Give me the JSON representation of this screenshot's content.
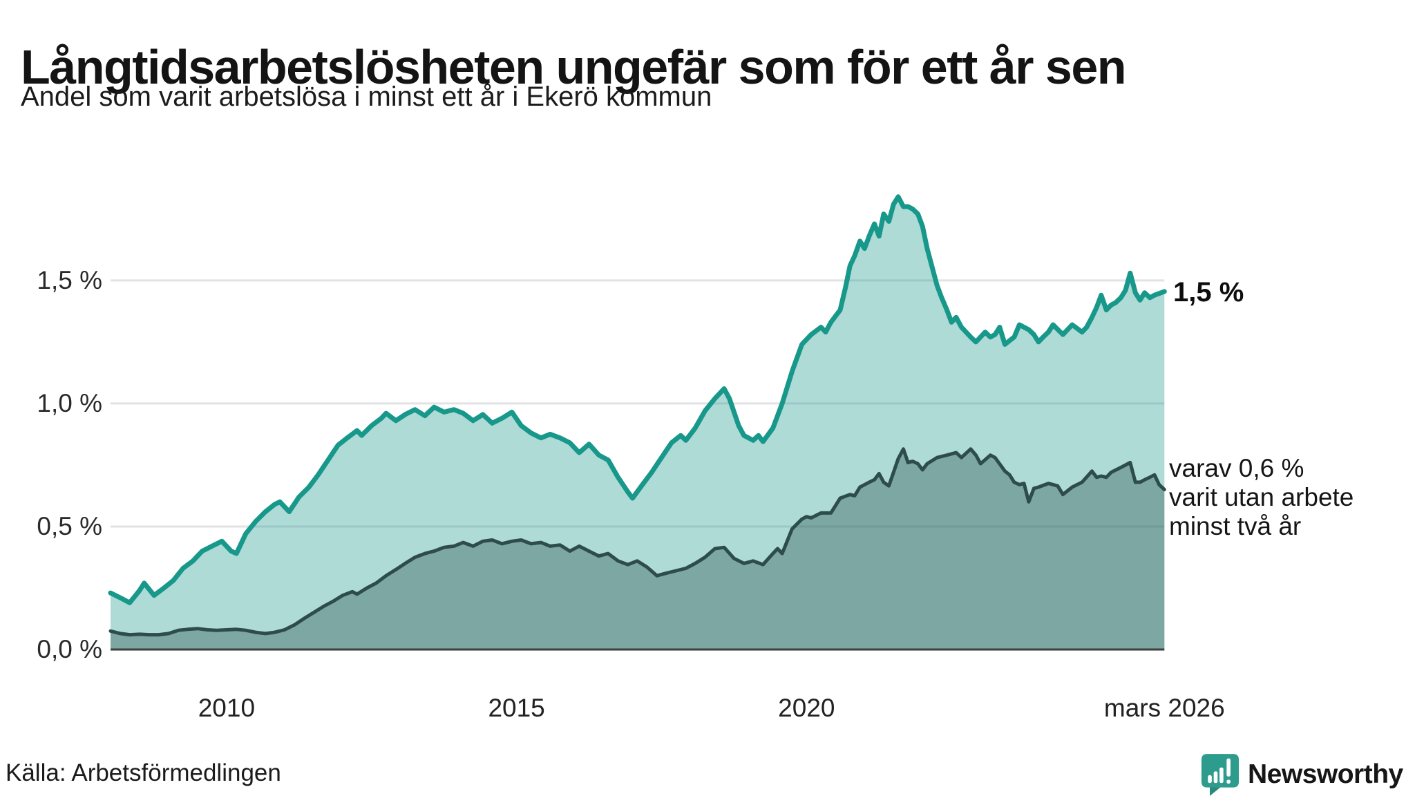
{
  "header": {
    "title": "Långtidsarbetslösheten ungefär som för ett år sen",
    "subtitle": "Andel som varit arbetslösa i minst ett år i Ekerö kommun"
  },
  "annotations": {
    "latest_total": "1,5 %",
    "secondary": [
      "varav 0,6 %",
      "varit utan arbete",
      "minst två år"
    ]
  },
  "source": {
    "label": "Källa: Arbetsförmedlingen"
  },
  "branding": {
    "name": "Newsworthy",
    "color": "#2d9b8d",
    "icon": "bar-chart-speech-bubble-icon"
  },
  "chart_data": {
    "type": "area",
    "title": "Långtidsarbetslösheten ungefär som för ett år sen",
    "subtitle": "Andel som varit arbetslösa i minst ett år i Ekerö kommun",
    "unit": "%",
    "x_range": [
      2008,
      2026.25
    ],
    "y_range": [
      0,
      2.05
    ],
    "grid": true,
    "legend_position": "right-annotations",
    "colors": {
      "grid": "#e2e2e7",
      "axis": "#3e3e3e"
    },
    "y_ticks": [
      {
        "label": "0,0 %",
        "value": 0
      },
      {
        "label": "0,5 %",
        "value": 0.5
      },
      {
        "label": "1,0 %",
        "value": 1.0
      },
      {
        "label": "1,5 %",
        "value": 1.5
      }
    ],
    "x_ticks": [
      {
        "label": "2010",
        "year": 2010
      },
      {
        "label": "2015",
        "year": 2015
      },
      {
        "label": "2020",
        "year": 2020
      },
      {
        "label": "mars 2026",
        "year": 2026.17
      }
    ],
    "series": [
      {
        "name": "arbetslösa minst ett år",
        "color": "#17988a",
        "fill": "rgba(23,152,138,0.35)",
        "stroke_width": 7,
        "latest_label": "1,5 %",
        "points": [
          [
            2008.0,
            0.23
          ],
          [
            2008.17,
            0.21
          ],
          [
            2008.33,
            0.19
          ],
          [
            2008.5,
            0.24
          ],
          [
            2008.58,
            0.27
          ],
          [
            2008.75,
            0.22
          ],
          [
            2008.92,
            0.25
          ],
          [
            2009.08,
            0.28
          ],
          [
            2009.25,
            0.33
          ],
          [
            2009.42,
            0.36
          ],
          [
            2009.58,
            0.4
          ],
          [
            2009.75,
            0.42
          ],
          [
            2009.92,
            0.44
          ],
          [
            2010.08,
            0.4
          ],
          [
            2010.17,
            0.39
          ],
          [
            2010.33,
            0.47
          ],
          [
            2010.5,
            0.52
          ],
          [
            2010.67,
            0.56
          ],
          [
            2010.83,
            0.59
          ],
          [
            2010.92,
            0.6
          ],
          [
            2011.08,
            0.56
          ],
          [
            2011.25,
            0.62
          ],
          [
            2011.42,
            0.66
          ],
          [
            2011.58,
            0.71
          ],
          [
            2011.75,
            0.77
          ],
          [
            2011.92,
            0.83
          ],
          [
            2012.08,
            0.86
          ],
          [
            2012.25,
            0.89
          ],
          [
            2012.33,
            0.87
          ],
          [
            2012.5,
            0.91
          ],
          [
            2012.67,
            0.94
          ],
          [
            2012.75,
            0.96
          ],
          [
            2012.92,
            0.93
          ],
          [
            2013.08,
            0.955
          ],
          [
            2013.25,
            0.975
          ],
          [
            2013.42,
            0.95
          ],
          [
            2013.58,
            0.985
          ],
          [
            2013.75,
            0.965
          ],
          [
            2013.92,
            0.975
          ],
          [
            2014.08,
            0.96
          ],
          [
            2014.25,
            0.93
          ],
          [
            2014.42,
            0.955
          ],
          [
            2014.58,
            0.92
          ],
          [
            2014.75,
            0.94
          ],
          [
            2014.92,
            0.965
          ],
          [
            2015.08,
            0.91
          ],
          [
            2015.25,
            0.88
          ],
          [
            2015.42,
            0.86
          ],
          [
            2015.58,
            0.875
          ],
          [
            2015.75,
            0.86
          ],
          [
            2015.92,
            0.84
          ],
          [
            2016.08,
            0.8
          ],
          [
            2016.25,
            0.835
          ],
          [
            2016.42,
            0.79
          ],
          [
            2016.58,
            0.77
          ],
          [
            2016.75,
            0.7
          ],
          [
            2016.92,
            0.64
          ],
          [
            2017.0,
            0.615
          ],
          [
            2017.17,
            0.67
          ],
          [
            2017.33,
            0.72
          ],
          [
            2017.5,
            0.78
          ],
          [
            2017.67,
            0.84
          ],
          [
            2017.83,
            0.87
          ],
          [
            2017.92,
            0.85
          ],
          [
            2018.08,
            0.9
          ],
          [
            2018.25,
            0.97
          ],
          [
            2018.42,
            1.02
          ],
          [
            2018.58,
            1.06
          ],
          [
            2018.67,
            1.02
          ],
          [
            2018.83,
            0.91
          ],
          [
            2018.92,
            0.87
          ],
          [
            2019.08,
            0.85
          ],
          [
            2019.17,
            0.87
          ],
          [
            2019.25,
            0.845
          ],
          [
            2019.42,
            0.9
          ],
          [
            2019.58,
            1.0
          ],
          [
            2019.75,
            1.13
          ],
          [
            2019.92,
            1.24
          ],
          [
            2020.08,
            1.28
          ],
          [
            2020.25,
            1.31
          ],
          [
            2020.33,
            1.29
          ],
          [
            2020.42,
            1.33
          ],
          [
            2020.58,
            1.38
          ],
          [
            2020.67,
            1.47
          ],
          [
            2020.75,
            1.56
          ],
          [
            2020.83,
            1.6
          ],
          [
            2020.92,
            1.66
          ],
          [
            2021.0,
            1.63
          ],
          [
            2021.08,
            1.68
          ],
          [
            2021.17,
            1.73
          ],
          [
            2021.25,
            1.68
          ],
          [
            2021.33,
            1.77
          ],
          [
            2021.42,
            1.74
          ],
          [
            2021.5,
            1.81
          ],
          [
            2021.58,
            1.84
          ],
          [
            2021.67,
            1.8
          ],
          [
            2021.75,
            1.8
          ],
          [
            2021.83,
            1.79
          ],
          [
            2021.92,
            1.77
          ],
          [
            2022.0,
            1.72
          ],
          [
            2022.08,
            1.63
          ],
          [
            2022.17,
            1.55
          ],
          [
            2022.25,
            1.48
          ],
          [
            2022.33,
            1.43
          ],
          [
            2022.42,
            1.38
          ],
          [
            2022.5,
            1.33
          ],
          [
            2022.58,
            1.35
          ],
          [
            2022.67,
            1.31
          ],
          [
            2022.75,
            1.29
          ],
          [
            2022.83,
            1.27
          ],
          [
            2022.92,
            1.25
          ],
          [
            2023.08,
            1.29
          ],
          [
            2023.17,
            1.27
          ],
          [
            2023.25,
            1.28
          ],
          [
            2023.33,
            1.31
          ],
          [
            2023.42,
            1.24
          ],
          [
            2023.58,
            1.27
          ],
          [
            2023.67,
            1.32
          ],
          [
            2023.83,
            1.3
          ],
          [
            2023.92,
            1.28
          ],
          [
            2024.0,
            1.25
          ],
          [
            2024.08,
            1.27
          ],
          [
            2024.17,
            1.29
          ],
          [
            2024.25,
            1.32
          ],
          [
            2024.42,
            1.28
          ],
          [
            2024.5,
            1.3
          ],
          [
            2024.58,
            1.32
          ],
          [
            2024.75,
            1.29
          ],
          [
            2024.83,
            1.31
          ],
          [
            2024.92,
            1.35
          ],
          [
            2025.0,
            1.39
          ],
          [
            2025.08,
            1.44
          ],
          [
            2025.17,
            1.38
          ],
          [
            2025.25,
            1.4
          ],
          [
            2025.33,
            1.41
          ],
          [
            2025.42,
            1.43
          ],
          [
            2025.5,
            1.46
          ],
          [
            2025.58,
            1.53
          ],
          [
            2025.67,
            1.45
          ],
          [
            2025.75,
            1.42
          ],
          [
            2025.83,
            1.45
          ],
          [
            2025.92,
            1.43
          ],
          [
            2026.0,
            1.44
          ],
          [
            2026.17,
            1.455
          ]
        ]
      },
      {
        "name": "varav utan arbete minst två år",
        "color": "#2e4c4b",
        "fill": "rgba(38,74,72,0.36)",
        "stroke_width": 5,
        "latest_label": "0,6 %",
        "points": [
          [
            2008.0,
            0.075
          ],
          [
            2008.17,
            0.065
          ],
          [
            2008.33,
            0.06
          ],
          [
            2008.5,
            0.062
          ],
          [
            2008.67,
            0.06
          ],
          [
            2008.83,
            0.06
          ],
          [
            2009.0,
            0.065
          ],
          [
            2009.17,
            0.078
          ],
          [
            2009.33,
            0.082
          ],
          [
            2009.5,
            0.085
          ],
          [
            2009.67,
            0.08
          ],
          [
            2009.83,
            0.078
          ],
          [
            2010.0,
            0.08
          ],
          [
            2010.17,
            0.082
          ],
          [
            2010.33,
            0.078
          ],
          [
            2010.5,
            0.07
          ],
          [
            2010.67,
            0.065
          ],
          [
            2010.83,
            0.07
          ],
          [
            2011.0,
            0.08
          ],
          [
            2011.17,
            0.1
          ],
          [
            2011.33,
            0.125
          ],
          [
            2011.5,
            0.15
          ],
          [
            2011.67,
            0.175
          ],
          [
            2011.83,
            0.195
          ],
          [
            2012.0,
            0.22
          ],
          [
            2012.17,
            0.235
          ],
          [
            2012.25,
            0.225
          ],
          [
            2012.42,
            0.25
          ],
          [
            2012.58,
            0.27
          ],
          [
            2012.75,
            0.3
          ],
          [
            2012.92,
            0.325
          ],
          [
            2013.08,
            0.35
          ],
          [
            2013.25,
            0.375
          ],
          [
            2013.42,
            0.39
          ],
          [
            2013.58,
            0.4
          ],
          [
            2013.75,
            0.415
          ],
          [
            2013.92,
            0.42
          ],
          [
            2014.08,
            0.435
          ],
          [
            2014.25,
            0.42
          ],
          [
            2014.42,
            0.44
          ],
          [
            2014.58,
            0.445
          ],
          [
            2014.75,
            0.43
          ],
          [
            2014.92,
            0.44
          ],
          [
            2015.08,
            0.445
          ],
          [
            2015.25,
            0.43
          ],
          [
            2015.42,
            0.435
          ],
          [
            2015.58,
            0.42
          ],
          [
            2015.75,
            0.425
          ],
          [
            2015.92,
            0.4
          ],
          [
            2016.08,
            0.42
          ],
          [
            2016.25,
            0.4
          ],
          [
            2016.42,
            0.38
          ],
          [
            2016.58,
            0.39
          ],
          [
            2016.75,
            0.36
          ],
          [
            2016.92,
            0.345
          ],
          [
            2017.08,
            0.36
          ],
          [
            2017.25,
            0.335
          ],
          [
            2017.42,
            0.3
          ],
          [
            2017.58,
            0.31
          ],
          [
            2017.75,
            0.32
          ],
          [
            2017.92,
            0.33
          ],
          [
            2018.08,
            0.35
          ],
          [
            2018.25,
            0.375
          ],
          [
            2018.42,
            0.41
          ],
          [
            2018.58,
            0.415
          ],
          [
            2018.75,
            0.37
          ],
          [
            2018.92,
            0.35
          ],
          [
            2019.08,
            0.36
          ],
          [
            2019.25,
            0.345
          ],
          [
            2019.42,
            0.39
          ],
          [
            2019.5,
            0.41
          ],
          [
            2019.58,
            0.39
          ],
          [
            2019.75,
            0.49
          ],
          [
            2019.92,
            0.53
          ],
          [
            2020.0,
            0.54
          ],
          [
            2020.08,
            0.535
          ],
          [
            2020.25,
            0.555
          ],
          [
            2020.42,
            0.555
          ],
          [
            2020.58,
            0.615
          ],
          [
            2020.75,
            0.63
          ],
          [
            2020.83,
            0.625
          ],
          [
            2020.92,
            0.66
          ],
          [
            2021.08,
            0.68
          ],
          [
            2021.17,
            0.69
          ],
          [
            2021.25,
            0.715
          ],
          [
            2021.33,
            0.68
          ],
          [
            2021.42,
            0.665
          ],
          [
            2021.58,
            0.775
          ],
          [
            2021.67,
            0.815
          ],
          [
            2021.75,
            0.76
          ],
          [
            2021.83,
            0.765
          ],
          [
            2021.92,
            0.755
          ],
          [
            2022.0,
            0.73
          ],
          [
            2022.08,
            0.755
          ],
          [
            2022.25,
            0.78
          ],
          [
            2022.42,
            0.79
          ],
          [
            2022.58,
            0.8
          ],
          [
            2022.67,
            0.78
          ],
          [
            2022.83,
            0.815
          ],
          [
            2022.92,
            0.79
          ],
          [
            2023.0,
            0.755
          ],
          [
            2023.17,
            0.79
          ],
          [
            2023.25,
            0.78
          ],
          [
            2023.42,
            0.725
          ],
          [
            2023.5,
            0.71
          ],
          [
            2023.58,
            0.68
          ],
          [
            2023.67,
            0.67
          ],
          [
            2023.75,
            0.675
          ],
          [
            2023.83,
            0.6
          ],
          [
            2023.92,
            0.655
          ],
          [
            2024.0,
            0.66
          ],
          [
            2024.17,
            0.675
          ],
          [
            2024.33,
            0.665
          ],
          [
            2024.42,
            0.63
          ],
          [
            2024.58,
            0.66
          ],
          [
            2024.75,
            0.68
          ],
          [
            2024.92,
            0.725
          ],
          [
            2025.0,
            0.7
          ],
          [
            2025.08,
            0.705
          ],
          [
            2025.17,
            0.7
          ],
          [
            2025.25,
            0.72
          ],
          [
            2025.42,
            0.74
          ],
          [
            2025.58,
            0.76
          ],
          [
            2025.67,
            0.68
          ],
          [
            2025.75,
            0.68
          ],
          [
            2025.83,
            0.69
          ],
          [
            2025.92,
            0.7
          ],
          [
            2026.0,
            0.71
          ],
          [
            2026.08,
            0.67
          ],
          [
            2026.17,
            0.65
          ]
        ]
      }
    ]
  }
}
